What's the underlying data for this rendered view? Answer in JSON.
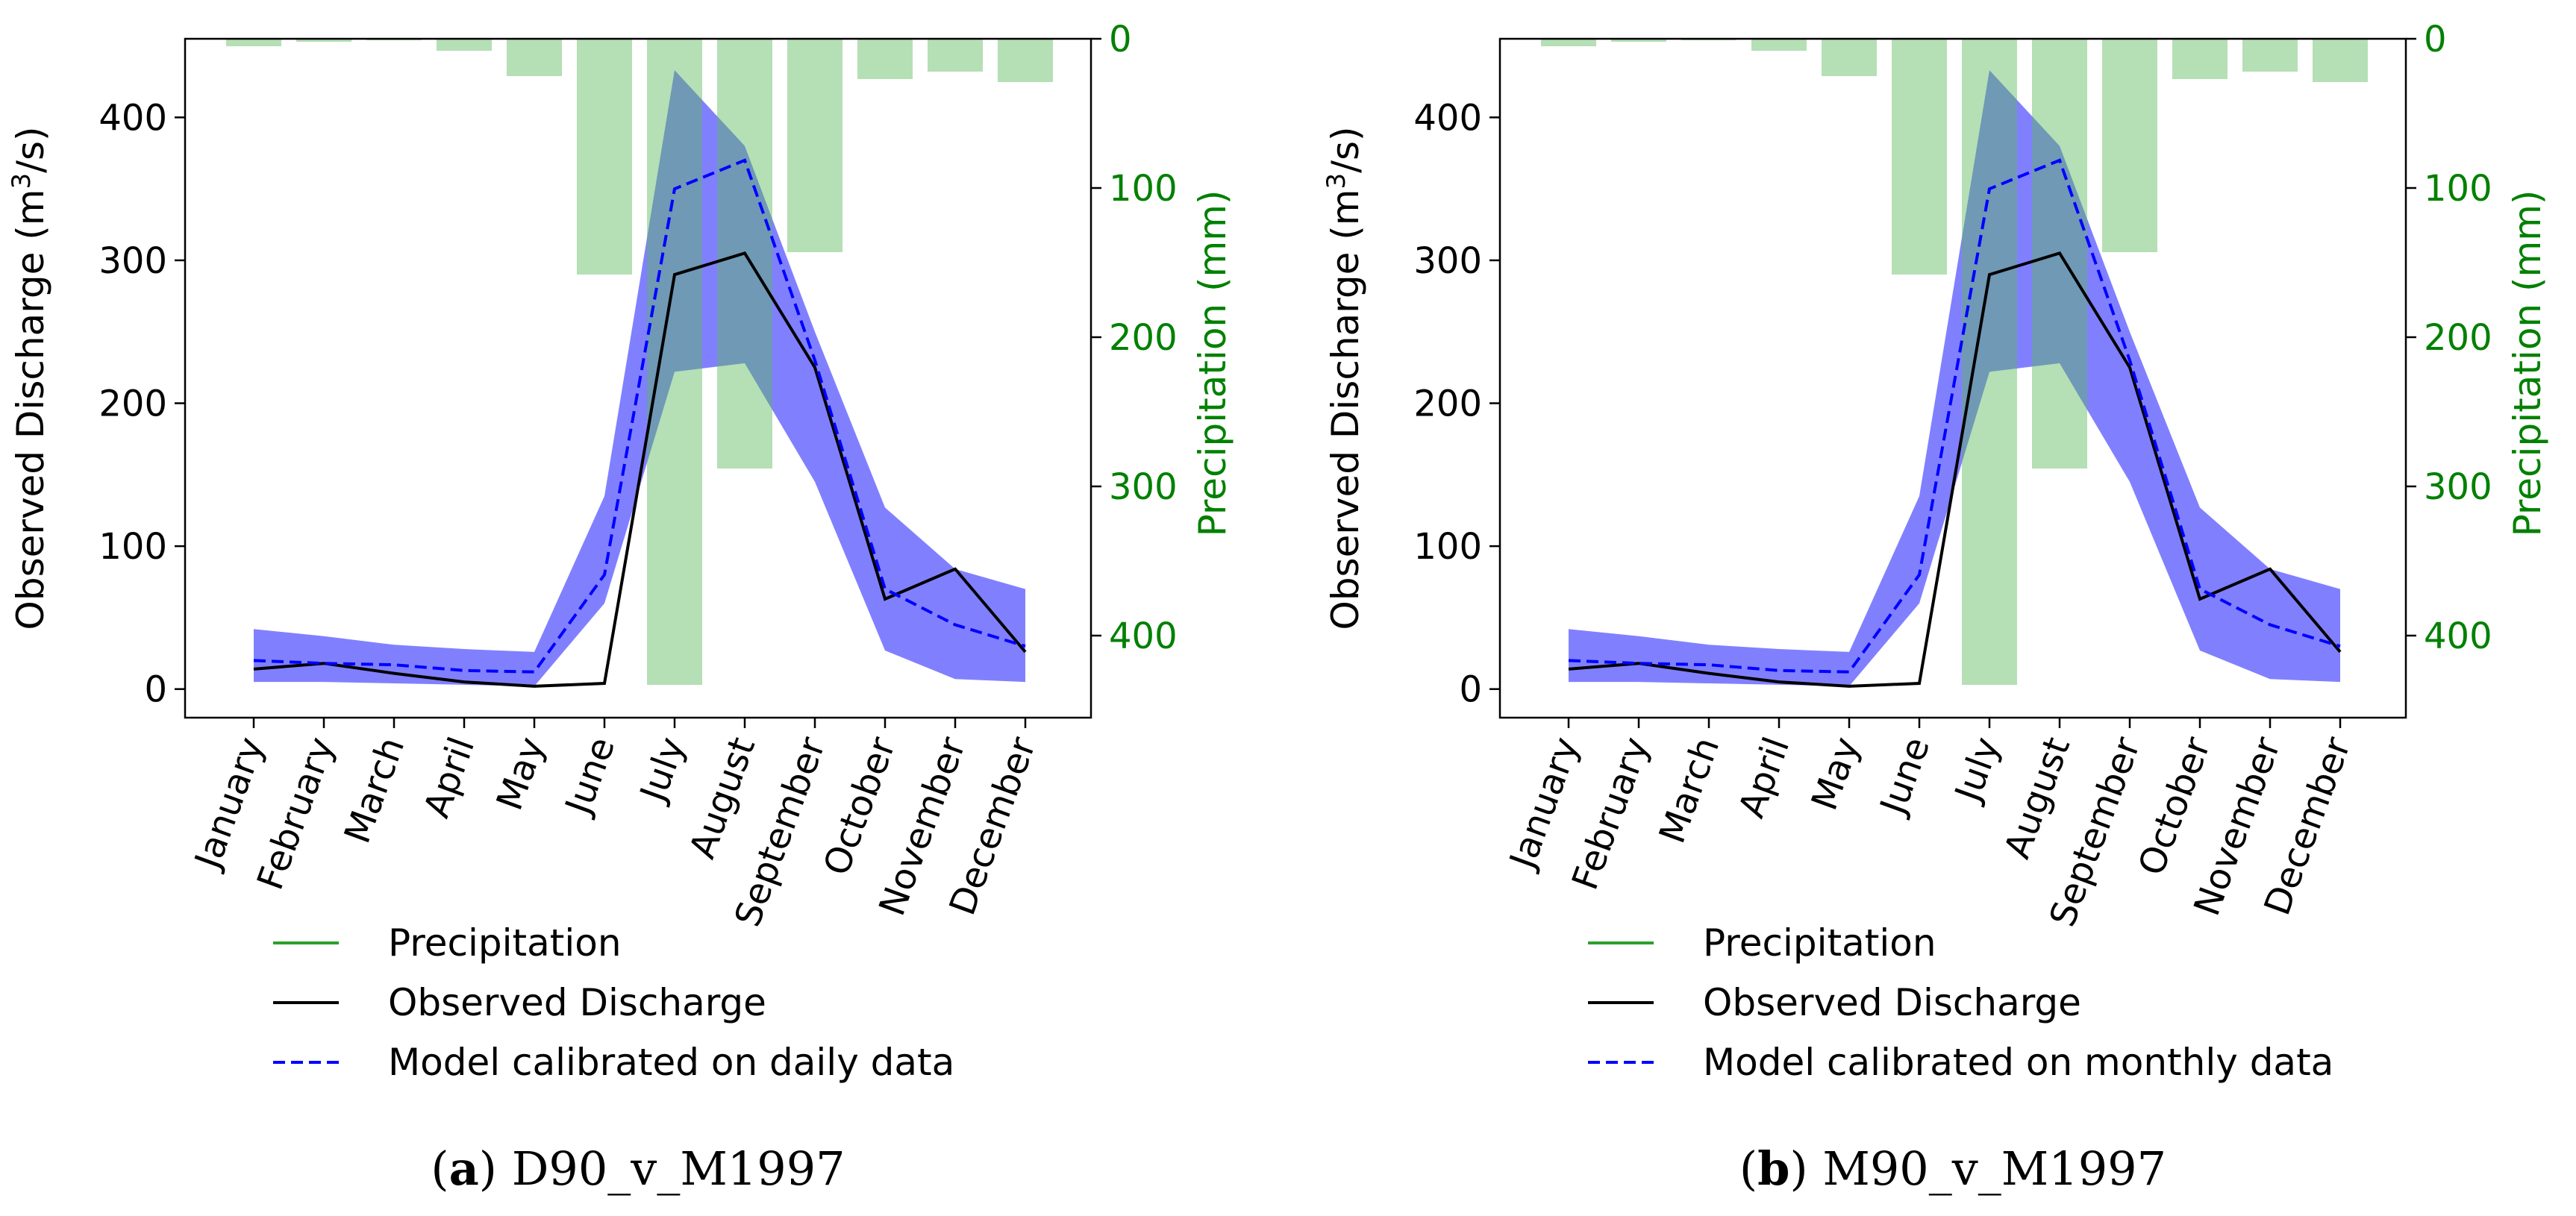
{
  "chart_data": [
    {
      "type": "bar",
      "caption_label": "a",
      "caption_text": "D90_v_M1997",
      "categories": [
        "January",
        "February",
        "March",
        "April",
        "May",
        "June",
        "July",
        "August",
        "September",
        "October",
        "November",
        "December"
      ],
      "ylabel_pre": "Observed Discharge (m",
      "ylabel_sup": "3",
      "ylabel_post": "/s)",
      "y2label": "Precipitation (mm)",
      "ylim": [
        -20,
        455
      ],
      "yticks": [
        0,
        100,
        200,
        300,
        400
      ],
      "y2lim": [
        0,
        455
      ],
      "y2ticks": [
        0,
        100,
        200,
        300,
        400
      ],
      "y2_inverted": true,
      "colors": {
        "precip": "#b3d9b3",
        "band": "#8080ff",
        "observed": "#000000",
        "model": "#0000ff",
        "axis2": "#008000"
      },
      "series": [
        {
          "name": "Precipitation",
          "kind": "bar",
          "axis": "y2",
          "values": [
            5,
            2,
            1,
            8,
            25,
            158,
            433,
            288,
            143,
            27,
            22,
            29
          ]
        },
        {
          "name": "Observed Discharge",
          "kind": "line",
          "values": [
            14,
            18,
            11,
            5,
            2,
            4,
            290,
            305,
            225,
            63,
            84,
            26
          ]
        },
        {
          "name": "Model calibrated on daily data",
          "kind": "dashed-line",
          "values": [
            20,
            18,
            17,
            13,
            12,
            80,
            350,
            370,
            230,
            70,
            45,
            30
          ]
        },
        {
          "kind": "band",
          "upper": [
            42,
            37,
            31,
            28,
            26,
            135,
            433,
            380,
            250,
            127,
            84,
            70
          ],
          "lower": [
            5,
            5,
            4,
            3,
            2,
            60,
            222,
            228,
            145,
            27,
            7,
            5
          ]
        }
      ],
      "legend": [
        "Precipitation",
        "Observed Discharge",
        "Model calibrated on daily data"
      ]
    },
    {
      "type": "bar",
      "caption_label": "b",
      "caption_text": "M90_v_M1997",
      "categories": [
        "January",
        "February",
        "March",
        "April",
        "May",
        "June",
        "July",
        "August",
        "September",
        "October",
        "November",
        "December"
      ],
      "ylabel_pre": "Observed Discharge (m",
      "ylabel_sup": "3",
      "ylabel_post": "/s)",
      "y2label": "Precipitation (mm)",
      "ylim": [
        -20,
        455
      ],
      "yticks": [
        0,
        100,
        200,
        300,
        400
      ],
      "y2lim": [
        0,
        455
      ],
      "y2ticks": [
        0,
        100,
        200,
        300,
        400
      ],
      "y2_inverted": true,
      "colors": {
        "precip": "#b3d9b3",
        "band": "#8080ff",
        "observed": "#000000",
        "model": "#0000ff",
        "axis2": "#008000"
      },
      "series": [
        {
          "name": "Precipitation",
          "kind": "bar",
          "axis": "y2",
          "values": [
            5,
            2,
            1,
            8,
            25,
            158,
            433,
            288,
            143,
            27,
            22,
            29
          ]
        },
        {
          "name": "Observed Discharge",
          "kind": "line",
          "values": [
            14,
            18,
            11,
            5,
            2,
            4,
            290,
            305,
            225,
            63,
            84,
            26
          ]
        },
        {
          "name": "Model calibrated on monthly data",
          "kind": "dashed-line",
          "values": [
            20,
            18,
            17,
            13,
            12,
            80,
            350,
            370,
            230,
            70,
            45,
            30
          ]
        },
        {
          "kind": "band",
          "upper": [
            42,
            37,
            31,
            28,
            26,
            135,
            433,
            380,
            250,
            127,
            84,
            70
          ],
          "lower": [
            5,
            5,
            4,
            3,
            2,
            60,
            222,
            228,
            145,
            27,
            7,
            5
          ]
        }
      ],
      "legend": [
        "Precipitation",
        "Observed Discharge",
        "Model calibrated on monthly data"
      ]
    }
  ]
}
